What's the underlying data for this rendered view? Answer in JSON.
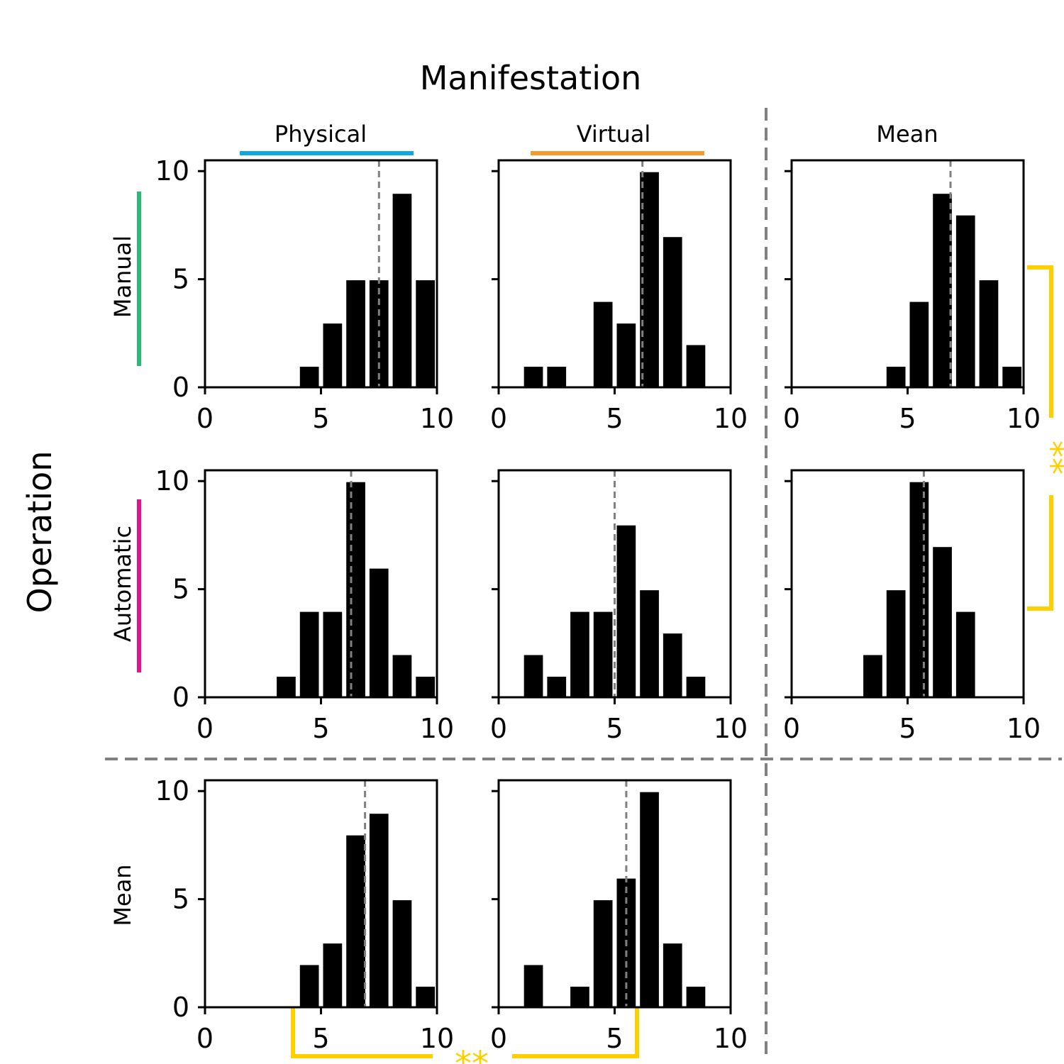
{
  "chart_data": {
    "type": "bar",
    "title": "Manifestation",
    "row_axis_label": "Operation",
    "column_labels": [
      "Physical",
      "Virtual",
      "Mean"
    ],
    "row_labels": [
      "Manual",
      "Automatic",
      "Mean"
    ],
    "x_ticks": [
      "0",
      "5",
      "10"
    ],
    "y_ticks": [
      "0",
      "5",
      "10"
    ],
    "xlim": [
      0,
      10
    ],
    "ylim": [
      0,
      10.5
    ],
    "significance_label": "**",
    "colors": {
      "physical": "#0EA8E0",
      "virtual": "#F39A2B",
      "manual": "#2DB876",
      "automatic": "#E0158C",
      "significance": "#FFD000",
      "bars": "#000000",
      "divider": "#808080"
    },
    "panels": [
      {
        "row": "Manual",
        "col": "Physical",
        "bins": [
          1,
          2,
          3,
          4,
          5,
          6,
          7,
          8,
          9,
          10
        ],
        "counts": [
          0,
          0,
          0,
          0,
          1,
          3,
          5,
          5,
          9,
          5
        ],
        "mean": 7.5
      },
      {
        "row": "Manual",
        "col": "Virtual",
        "bins": [
          1,
          2,
          3,
          4,
          5,
          6,
          7,
          8,
          9,
          10
        ],
        "counts": [
          0,
          1,
          1,
          0,
          4,
          3,
          10,
          7,
          2,
          0
        ],
        "mean": 6.2
      },
      {
        "row": "Manual",
        "col": "Mean",
        "bins": [
          1,
          2,
          3,
          4,
          5,
          6,
          7,
          8,
          9,
          10
        ],
        "counts": [
          0,
          0,
          0,
          0,
          1,
          4,
          9,
          8,
          5,
          1
        ],
        "mean": 6.85
      },
      {
        "row": "Automatic",
        "col": "Physical",
        "bins": [
          1,
          2,
          3,
          4,
          5,
          6,
          7,
          8,
          9,
          10
        ],
        "counts": [
          0,
          0,
          0,
          1,
          4,
          4,
          10,
          6,
          2,
          1
        ],
        "mean": 6.3
      },
      {
        "row": "Automatic",
        "col": "Virtual",
        "bins": [
          1,
          2,
          3,
          4,
          5,
          6,
          7,
          8,
          9,
          10
        ],
        "counts": [
          0,
          2,
          1,
          4,
          4,
          8,
          5,
          3,
          1,
          0
        ],
        "mean": 5.0
      },
      {
        "row": "Automatic",
        "col": "Mean",
        "bins": [
          1,
          2,
          3,
          4,
          5,
          6,
          7,
          8,
          9,
          10
        ],
        "counts": [
          0,
          0,
          0,
          2,
          5,
          10,
          7,
          4,
          0,
          0
        ],
        "mean": 5.7
      },
      {
        "row": "Mean",
        "col": "Physical",
        "bins": [
          1,
          2,
          3,
          4,
          5,
          6,
          7,
          8,
          9,
          10
        ],
        "counts": [
          0,
          0,
          0,
          0,
          2,
          3,
          8,
          9,
          5,
          1
        ],
        "mean": 6.9
      },
      {
        "row": "Mean",
        "col": "Virtual",
        "bins": [
          1,
          2,
          3,
          4,
          5,
          6,
          7,
          8,
          9,
          10
        ],
        "counts": [
          0,
          2,
          0,
          1,
          5,
          6,
          10,
          3,
          1,
          0
        ],
        "mean": 5.5
      }
    ]
  }
}
